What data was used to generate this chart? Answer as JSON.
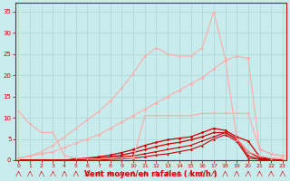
{
  "bg_color": "#c8ecec",
  "grid_color": "#b0d8d8",
  "xlabel": "Vent moyen/en rafales ( km/h )",
  "ylabel_ticks": [
    0,
    5,
    10,
    15,
    20,
    25,
    30,
    35
  ],
  "xticks": [
    0,
    1,
    2,
    3,
    4,
    5,
    6,
    7,
    8,
    9,
    10,
    11,
    12,
    13,
    14,
    15,
    16,
    17,
    18,
    19,
    20,
    21,
    22,
    23
  ],
  "xlim": [
    -0.3,
    23.3
  ],
  "ylim": [
    0,
    37
  ],
  "series": [
    {
      "x": [
        0,
        1,
        2,
        3,
        4,
        5,
        6,
        7,
        8,
        9,
        10,
        11,
        12,
        13,
        14,
        15,
        16,
        17,
        18,
        19,
        20,
        21,
        22,
        23
      ],
      "y": [
        0,
        0,
        0,
        0,
        0,
        0,
        0,
        0,
        0.2,
        0.3,
        0.5,
        0.8,
        1.2,
        1.5,
        2.0,
        2.5,
        3.5,
        5.0,
        6.0,
        4.5,
        0.5,
        0.2,
        0,
        0
      ],
      "color": "#cc0000",
      "lw": 0.8,
      "marker": "^",
      "ms": 2.0
    },
    {
      "x": [
        0,
        1,
        2,
        3,
        4,
        5,
        6,
        7,
        8,
        9,
        10,
        11,
        12,
        13,
        14,
        15,
        16,
        17,
        18,
        19,
        20,
        21,
        22,
        23
      ],
      "y": [
        0,
        0,
        0,
        0,
        0,
        0,
        0.2,
        0.3,
        0.5,
        0.8,
        1.0,
        1.5,
        2.0,
        2.5,
        3.0,
        3.5,
        4.5,
        5.5,
        6.5,
        5.0,
        1.0,
        0.2,
        0,
        0
      ],
      "color": "#cc0000",
      "lw": 0.8,
      "marker": "s",
      "ms": 1.8
    },
    {
      "x": [
        0,
        1,
        2,
        3,
        4,
        5,
        6,
        7,
        8,
        9,
        10,
        11,
        12,
        13,
        14,
        15,
        16,
        17,
        18,
        19,
        20,
        21,
        22,
        23
      ],
      "y": [
        0,
        0,
        0,
        0,
        0,
        0.2,
        0.4,
        0.5,
        0.8,
        1.2,
        1.8,
        2.5,
        3.2,
        3.8,
        4.2,
        4.8,
        5.5,
        6.5,
        6.5,
        5.0,
        2.0,
        0.5,
        0.1,
        0
      ],
      "color": "#cc0000",
      "lw": 0.9,
      "marker": "D",
      "ms": 1.8
    },
    {
      "x": [
        0,
        1,
        2,
        3,
        4,
        5,
        6,
        7,
        8,
        9,
        10,
        11,
        12,
        13,
        14,
        15,
        16,
        17,
        18,
        19,
        20,
        21,
        22,
        23
      ],
      "y": [
        0,
        0,
        0,
        0,
        0,
        0.3,
        0.5,
        0.8,
        1.2,
        1.8,
        2.5,
        3.5,
        4.2,
        4.8,
        5.2,
        5.5,
        6.5,
        7.5,
        7.0,
        5.5,
        4.5,
        0.8,
        0.2,
        0
      ],
      "color": "#cc0000",
      "lw": 0.9,
      "marker": "o",
      "ms": 2.0
    },
    {
      "x": [
        0,
        1,
        2,
        3,
        4,
        5,
        6,
        7,
        8,
        9,
        10,
        11,
        12,
        13,
        14,
        15,
        16,
        17,
        18,
        19,
        20,
        21,
        22,
        23
      ],
      "y": [
        11.5,
        8.5,
        6.5,
        6.5,
        1.0,
        0.5,
        0.3,
        0.3,
        0.5,
        0.5,
        0.5,
        10.5,
        10.5,
        10.5,
        10.5,
        10.5,
        11.0,
        11.0,
        11.0,
        11.0,
        11.0,
        2.5,
        1.5,
        1.0
      ],
      "color": "#ffaaaa",
      "lw": 0.8,
      "marker": "v",
      "ms": 2.0
    },
    {
      "x": [
        0,
        1,
        2,
        3,
        4,
        5,
        6,
        7,
        8,
        9,
        10,
        11,
        12,
        13,
        14,
        15,
        16,
        17,
        18,
        19,
        20,
        21,
        22,
        23
      ],
      "y": [
        0.5,
        1.0,
        1.5,
        2.0,
        3.0,
        4.0,
        5.0,
        6.0,
        7.5,
        9.0,
        10.5,
        12.0,
        13.5,
        15.0,
        16.5,
        18.0,
        19.5,
        21.5,
        23.5,
        24.5,
        24.0,
        2.5,
        1.5,
        1.0
      ],
      "color": "#ffaaaa",
      "lw": 0.8,
      "marker": "D",
      "ms": 2.0
    },
    {
      "x": [
        0,
        1,
        2,
        3,
        4,
        5,
        6,
        7,
        8,
        9,
        10,
        11,
        12,
        13,
        14,
        15,
        16,
        17,
        18,
        19,
        20,
        21,
        22,
        23
      ],
      "y": [
        0.5,
        1.0,
        2.0,
        3.5,
        5.5,
        7.5,
        9.5,
        11.5,
        14.0,
        17.0,
        20.5,
        24.5,
        26.5,
        25.0,
        24.5,
        24.5,
        26.5,
        35.0,
        24.0,
        5.0,
        2.0,
        1.0,
        0.5,
        0.5
      ],
      "color": "#ffaaaa",
      "lw": 0.8,
      "marker": "^",
      "ms": 2.0
    }
  ]
}
